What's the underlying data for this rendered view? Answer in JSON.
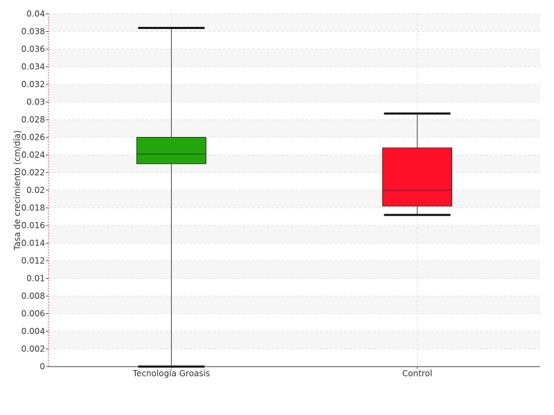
{
  "chart_data": {
    "type": "box",
    "ylabel": "Tasa de crecimiento (cm/día)",
    "xlabel": "",
    "ylim": [
      0,
      0.04
    ],
    "yticks": [
      0,
      0.002,
      0.004,
      0.006,
      0.008,
      0.01,
      0.012,
      0.014,
      0.016,
      0.018,
      0.02,
      0.022,
      0.024,
      0.026,
      0.028,
      0.03,
      0.032,
      0.034,
      0.036,
      0.038,
      0.04
    ],
    "ytick_labels": [
      "0",
      "0.002",
      "0.004",
      "0.006",
      "0.008",
      "0.01",
      "0.012",
      "0.014",
      "0.016",
      "0.018",
      "0.02",
      "0.022",
      "0.024",
      "0.026",
      "0.028",
      "0.03",
      "0.032",
      "0.034",
      "0.036",
      "0.038",
      "0.04"
    ],
    "categories": [
      "Tecnología Groasis",
      "Control"
    ],
    "boxes": [
      {
        "category": "Tecnología Groasis",
        "min": 0.0,
        "q1": 0.023,
        "median": 0.0241,
        "q3": 0.026,
        "max": 0.0384,
        "color": "#22a60c"
      },
      {
        "category": "Control",
        "min": 0.0172,
        "q1": 0.0182,
        "median": 0.02,
        "q3": 0.0248,
        "max": 0.0287,
        "color": "#ff1028"
      }
    ],
    "grid": true,
    "legend": "none"
  }
}
